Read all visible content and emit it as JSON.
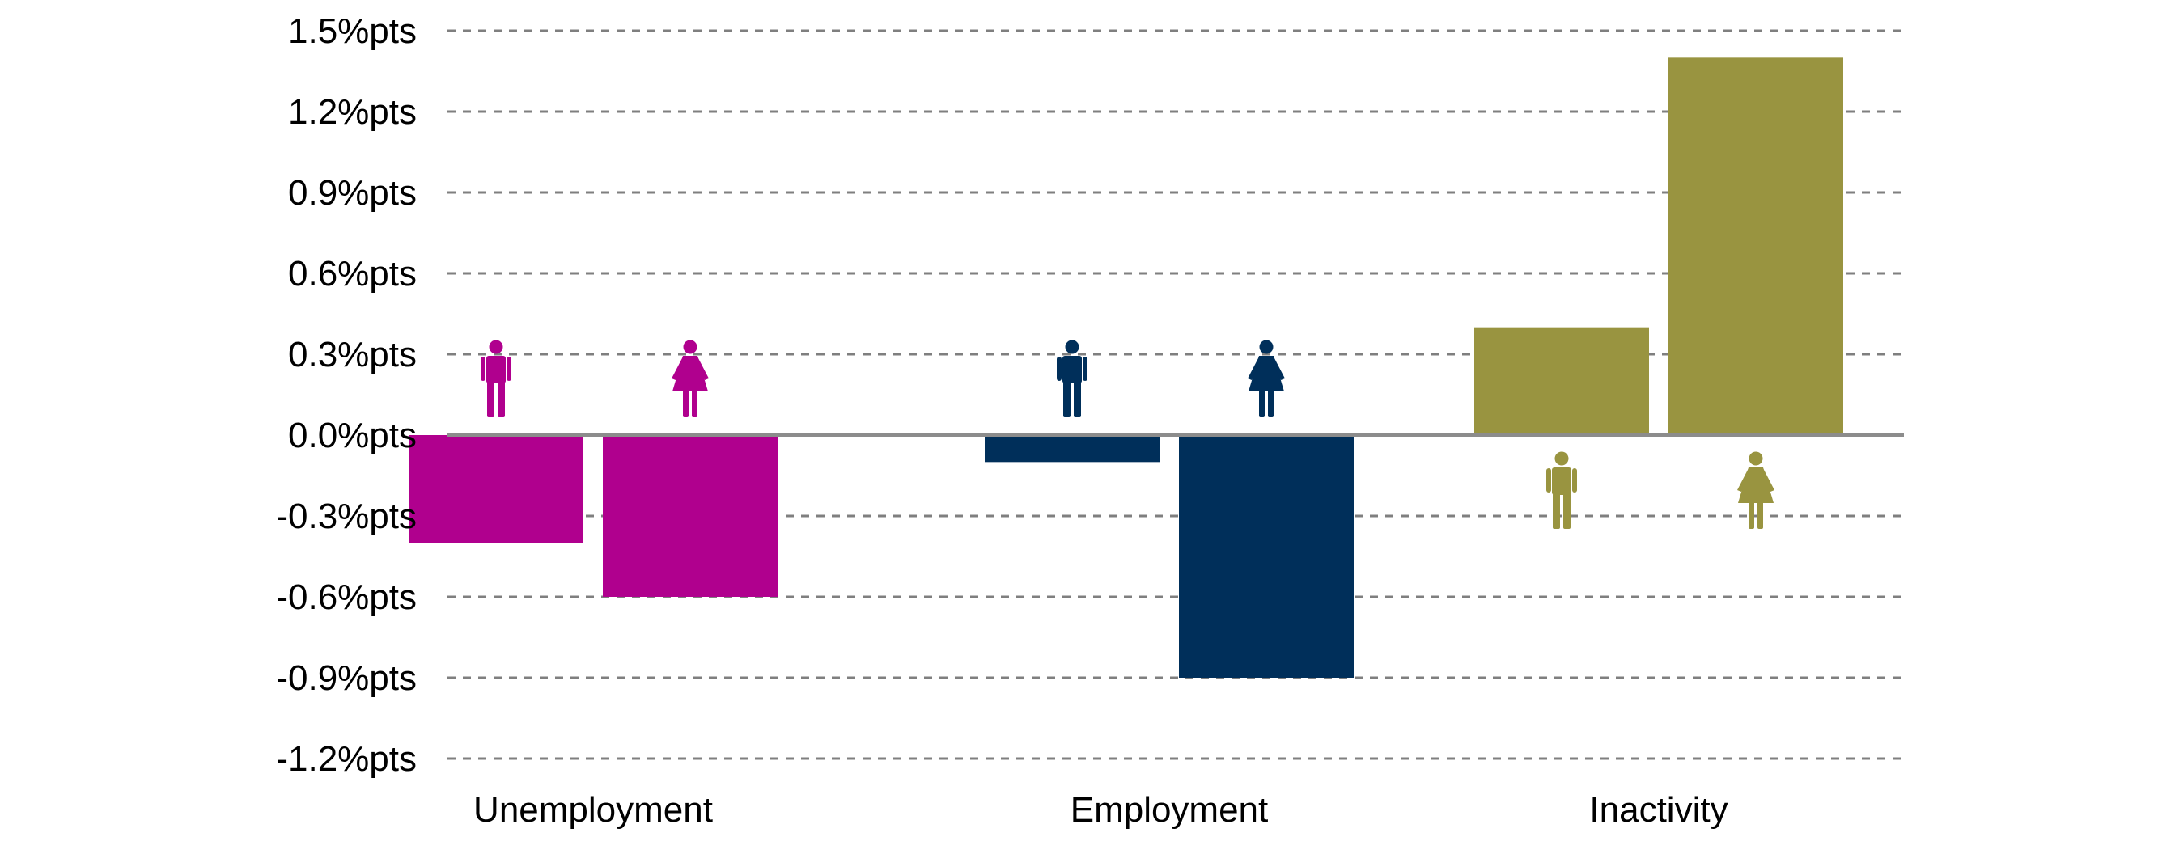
{
  "chart_data": {
    "type": "bar",
    "categories": [
      "Unemployment",
      "Employment",
      "Inactivity"
    ],
    "series": [
      {
        "group": "men",
        "values": [
          -0.4,
          -0.1,
          0.4
        ],
        "icon": "man-icon"
      },
      {
        "group": "women",
        "values": [
          -0.6,
          -0.9,
          1.4
        ],
        "icon": "woman-icon"
      }
    ],
    "category_colors": [
      "#b0008e",
      "#002f5a",
      "#999440"
    ],
    "yticks": [
      1.5,
      1.2,
      0.9,
      0.6,
      0.3,
      0.0,
      -0.3,
      -0.6,
      -0.9,
      -1.2
    ],
    "ytick_labels": [
      "1.5%pts",
      "1.2%pts",
      "0.9%pts",
      "0.6%pts",
      "0.3%pts",
      "0.0%pts",
      "-0.3%pts",
      "-0.6%pts",
      "-0.9%pts",
      "-1.2%pts"
    ],
    "ylim": [
      -1.2,
      1.5
    ],
    "title": "",
    "xlabel": "",
    "ylabel": "",
    "grid": "dashed horizontal",
    "legend": "none (man and woman icons mark each bar)"
  }
}
